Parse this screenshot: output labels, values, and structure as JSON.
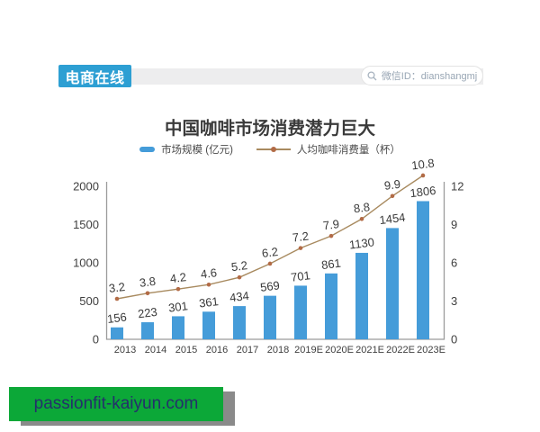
{
  "header": {
    "brand": "电商在线",
    "search_label": "微信ID：dianshangmj"
  },
  "chart_data": {
    "type": "bar+line",
    "title": "中国咖啡市场消费潜力巨大",
    "categories": [
      "2013",
      "2014",
      "2015",
      "2016",
      "2017",
      "2018",
      "2019E",
      "2020E",
      "2021E",
      "2022E",
      "2023E"
    ],
    "series": [
      {
        "name": "市场规模 (亿元)",
        "type": "bar",
        "axis": "left",
        "values": [
          156,
          223,
          301,
          361,
          434,
          569,
          701,
          861,
          1130,
          1454,
          1806
        ],
        "color": "#459cd9"
      },
      {
        "name": "人均咖啡消费量（杯）",
        "type": "line",
        "axis": "right",
        "values": [
          3.2,
          3.8,
          4.2,
          4.6,
          5.2,
          6.2,
          7.2,
          7.9,
          8.8,
          9.9,
          10.8
        ],
        "color": "#a88a5f",
        "marker_color": "#b26b46"
      }
    ],
    "left_axis": {
      "ticks": [
        0,
        500,
        1000,
        1500,
        2000
      ],
      "max": 2000
    },
    "right_axis": {
      "ticks": [
        0,
        3,
        6,
        9,
        12
      ],
      "max": 12
    },
    "legend_position": "top",
    "grid": false
  },
  "footer": {
    "watermark": "passionfit-kaiyun.com"
  },
  "colors": {
    "bar": "#459cd9",
    "line": "#a88a5f",
    "line_marker": "#b26b46",
    "brand_badge": "#2d9fd3",
    "header_bar": "#ededee",
    "watermark_bg": "#0ca838",
    "watermark_text": "#24306b",
    "label_text": "#3a3a3a"
  }
}
